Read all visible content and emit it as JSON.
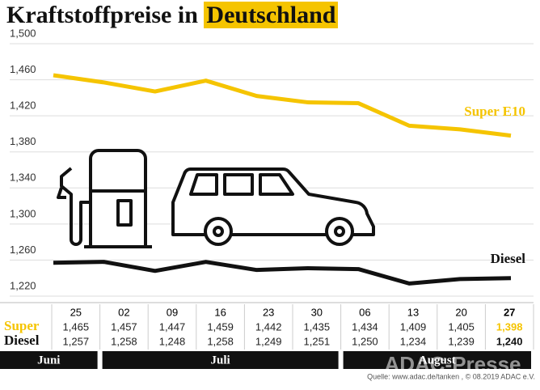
{
  "chart_data": {
    "type": "line",
    "title_prefix": "Kraftstoffpreise in",
    "title_highlight": "Deutschland",
    "categories": [
      "25",
      "02",
      "09",
      "16",
      "23",
      "30",
      "06",
      "13",
      "20",
      "27"
    ],
    "months": [
      "Juni",
      "Juli",
      "August"
    ],
    "row_labels": [
      "Super",
      "Diesel"
    ],
    "ylim": [
      1.22,
      1.5
    ],
    "yticks": [
      {
        "value": 1.22,
        "label": "1,220"
      },
      {
        "value": 1.26,
        "label": "1,260"
      },
      {
        "value": 1.3,
        "label": "1,300"
      },
      {
        "value": 1.34,
        "label": "1,340"
      },
      {
        "value": 1.38,
        "label": "1,380"
      },
      {
        "value": 1.42,
        "label": "1,420"
      },
      {
        "value": 1.46,
        "label": "1,460"
      },
      {
        "value": 1.5,
        "label": "1,500"
      }
    ],
    "grid": true,
    "series": [
      {
        "name": "Super E10",
        "color": "#f5c400",
        "values": [
          1.465,
          1.457,
          1.447,
          1.459,
          1.442,
          1.435,
          1.434,
          1.409,
          1.405,
          1.398
        ],
        "value_labels": [
          "1,465",
          "1,457",
          "1,447",
          "1,459",
          "1,442",
          "1,435",
          "1,434",
          "1,409",
          "1,405",
          "1,398"
        ]
      },
      {
        "name": "Diesel",
        "color": "#111111",
        "values": [
          1.257,
          1.258,
          1.248,
          1.258,
          1.249,
          1.251,
          1.25,
          1.234,
          1.239,
          1.24
        ],
        "value_labels": [
          "1,257",
          "1,258",
          "1,248",
          "1,258",
          "1,249",
          "1,251",
          "1,250",
          "1,234",
          "1,239",
          "1,240"
        ]
      }
    ],
    "source": "Quelle: www.adac.de/tanken , © 08.2019 ADAC e.V.",
    "watermark": "ADAC-Presse"
  }
}
